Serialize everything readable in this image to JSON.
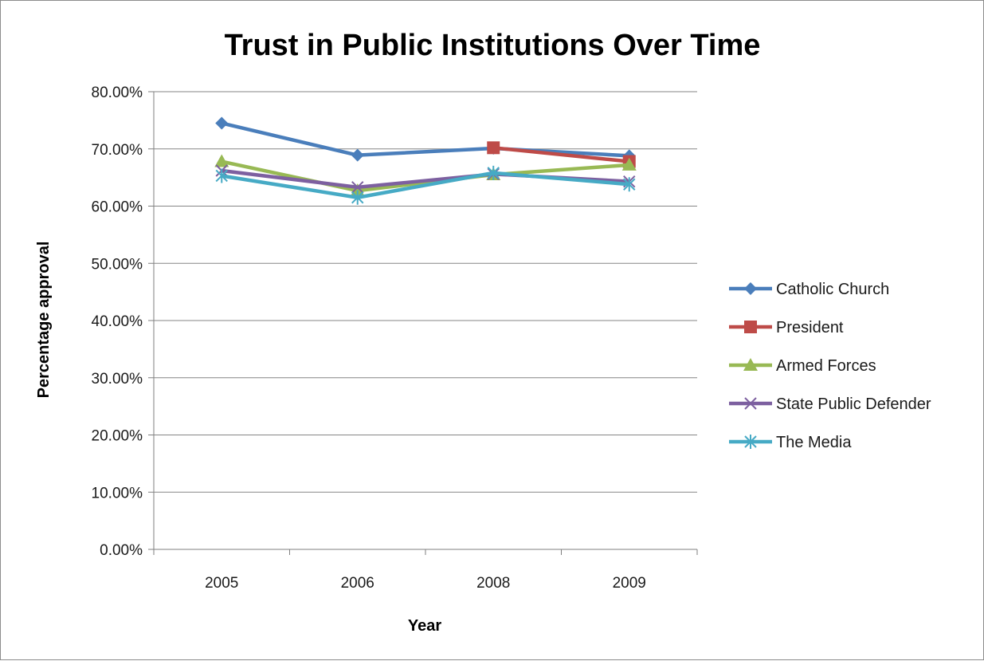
{
  "chart_data": {
    "type": "line",
    "title": "Trust in Public Institutions Over Time",
    "xlabel": "Year",
    "ylabel": "Percentage approval",
    "categories": [
      "2005",
      "2006",
      "2008",
      "2009"
    ],
    "y_ticks": [
      "0.00%",
      "10.00%",
      "20.00%",
      "30.00%",
      "40.00%",
      "50.00%",
      "60.00%",
      "70.00%",
      "80.00%"
    ],
    "ylim": [
      0,
      80
    ],
    "grid": true,
    "legend_position": "right",
    "series": [
      {
        "name": "Catholic Church",
        "color": "#4a7ebb",
        "marker": "diamond",
        "values": [
          74.5,
          68.9,
          70.1,
          68.8
        ]
      },
      {
        "name": "President",
        "color": "#be4b48",
        "marker": "square",
        "values": [
          null,
          null,
          70.2,
          67.8
        ]
      },
      {
        "name": "Armed Forces",
        "color": "#98b954",
        "marker": "triangle",
        "values": [
          67.8,
          62.7,
          65.5,
          67.2
        ]
      },
      {
        "name": "State Public Defender",
        "color": "#7d60a0",
        "marker": "x",
        "values": [
          66.2,
          63.3,
          65.6,
          64.3
        ]
      },
      {
        "name": "The Media",
        "color": "#46aac5",
        "marker": "asterisk",
        "values": [
          65.3,
          61.5,
          65.8,
          63.8
        ]
      }
    ]
  }
}
